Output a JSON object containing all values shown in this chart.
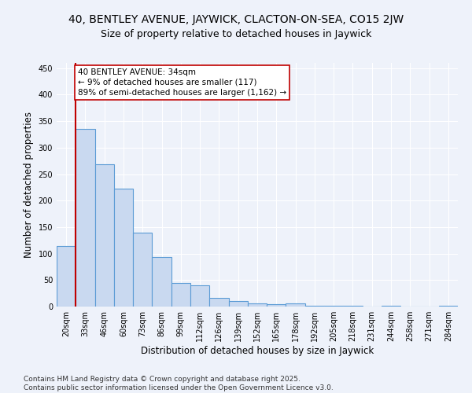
{
  "title_line1": "40, BENTLEY AVENUE, JAYWICK, CLACTON-ON-SEA, CO15 2JW",
  "title_line2": "Size of property relative to detached houses in Jaywick",
  "xlabel": "Distribution of detached houses by size in Jaywick",
  "ylabel": "Number of detached properties",
  "categories": [
    "20sqm",
    "33sqm",
    "46sqm",
    "60sqm",
    "73sqm",
    "86sqm",
    "99sqm",
    "112sqm",
    "126sqm",
    "139sqm",
    "152sqm",
    "165sqm",
    "178sqm",
    "192sqm",
    "205sqm",
    "218sqm",
    "231sqm",
    "244sqm",
    "258sqm",
    "271sqm",
    "284sqm"
  ],
  "values": [
    115,
    335,
    268,
    222,
    140,
    93,
    44,
    40,
    16,
    10,
    6,
    5,
    6,
    2,
    1,
    1,
    0,
    1,
    0,
    0,
    1
  ],
  "bar_color": "#c9d9f0",
  "bar_edge_color": "#5b9bd5",
  "vline_x_index": 1,
  "vline_color": "#c00000",
  "annotation_text": "40 BENTLEY AVENUE: 34sqm\n← 9% of detached houses are smaller (117)\n89% of semi-detached houses are larger (1,162) →",
  "annotation_box_color": "#ffffff",
  "annotation_box_edgecolor": "#c00000",
  "annotation_fontsize": 7.5,
  "ylim": [
    0,
    460
  ],
  "yticks": [
    0,
    50,
    100,
    150,
    200,
    250,
    300,
    350,
    400,
    450
  ],
  "title_fontsize1": 10,
  "title_fontsize2": 9,
  "xlabel_fontsize": 8.5,
  "ylabel_fontsize": 8.5,
  "tick_fontsize": 7,
  "footer_line1": "Contains HM Land Registry data © Crown copyright and database right 2025.",
  "footer_line2": "Contains public sector information licensed under the Open Government Licence v3.0.",
  "footer_fontsize": 6.5,
  "bg_color": "#eef2fa",
  "plot_bg_color": "#eef2fa",
  "grid_color": "#ffffff",
  "bar_width": 1.0
}
